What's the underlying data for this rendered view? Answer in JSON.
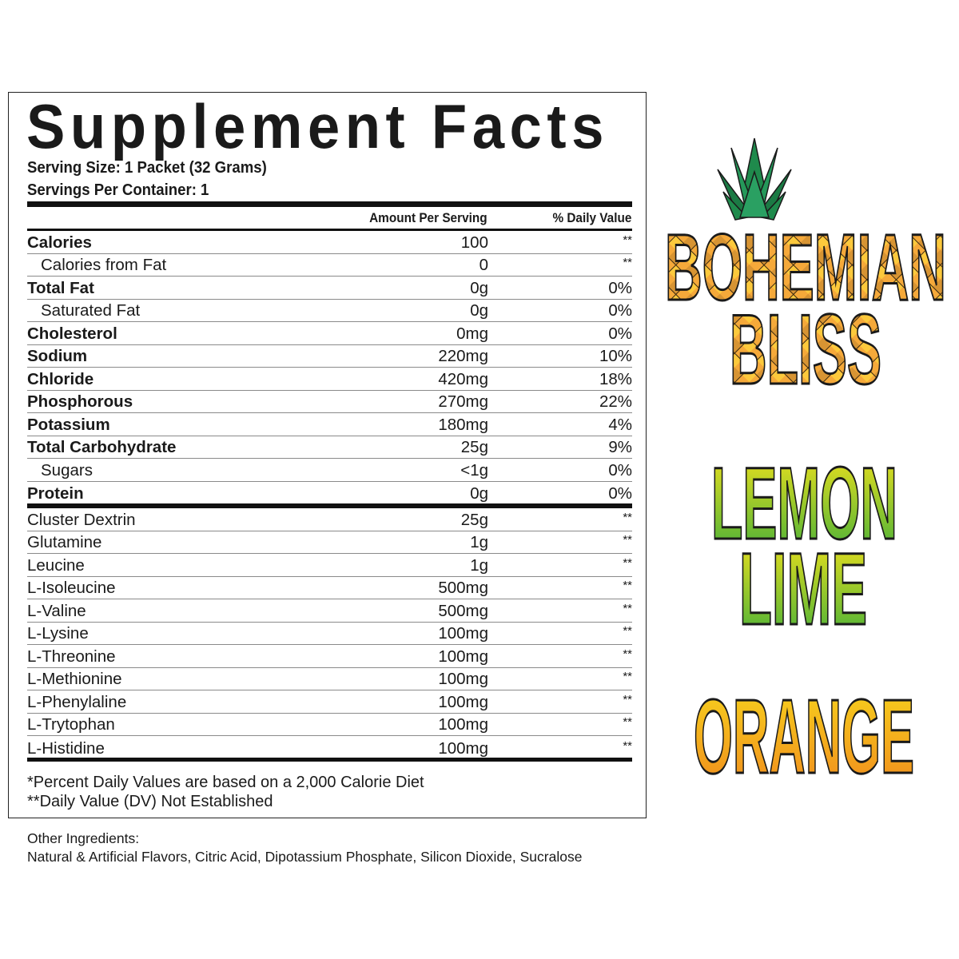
{
  "panel": {
    "title": "Supplement Facts",
    "serving_size": "Serving Size: 1 Packet (32 Grams)",
    "servings_per_container": "Servings Per Container: 1",
    "header_amount": "Amount Per Serving",
    "header_dv": "% Daily Value",
    "nutrients": [
      {
        "name": "Calories",
        "amount": "100",
        "dv": "**",
        "bold": true,
        "indent": false
      },
      {
        "name": "Calories from Fat",
        "amount": "0",
        "dv": "**",
        "bold": false,
        "indent": true
      },
      {
        "name": "Total Fat",
        "amount": "0g",
        "dv": "0%",
        "bold": true,
        "indent": false
      },
      {
        "name": "Saturated Fat",
        "amount": "0g",
        "dv": "0%",
        "bold": false,
        "indent": true
      },
      {
        "name": "Cholesterol",
        "amount": "0mg",
        "dv": "0%",
        "bold": true,
        "indent": false
      },
      {
        "name": "Sodium",
        "amount": "220mg",
        "dv": "10%",
        "bold": true,
        "indent": false
      },
      {
        "name": "Chloride",
        "amount": "420mg",
        "dv": "18%",
        "bold": true,
        "indent": false
      },
      {
        "name": "Phosphorous",
        "amount": "270mg",
        "dv": "22%",
        "bold": true,
        "indent": false
      },
      {
        "name": "Potassium",
        "amount": "180mg",
        "dv": "4%",
        "bold": true,
        "indent": false
      },
      {
        "name": "Total Carbohydrate",
        "amount": "25g",
        "dv": "9%",
        "bold": true,
        "indent": false
      },
      {
        "name": "Sugars",
        "amount": "<1g",
        "dv": "0%",
        "bold": false,
        "indent": true
      },
      {
        "name": "Protein",
        "amount": "0g",
        "dv": "0%",
        "bold": true,
        "indent": false
      }
    ],
    "ingredients": [
      {
        "name": "Cluster Dextrin",
        "amount": "25g",
        "dv": "**"
      },
      {
        "name": "Glutamine",
        "amount": "1g",
        "dv": "**"
      },
      {
        "name": "Leucine",
        "amount": "1g",
        "dv": "**"
      },
      {
        "name": "L-Isoleucine",
        "amount": "500mg",
        "dv": "**"
      },
      {
        "name": "L-Valine",
        "amount": "500mg",
        "dv": "**"
      },
      {
        "name": "L-Lysine",
        "amount": "100mg",
        "dv": "**"
      },
      {
        "name": "L-Threonine",
        "amount": "100mg",
        "dv": "**"
      },
      {
        "name": "L-Methionine",
        "amount": "100mg",
        "dv": "**"
      },
      {
        "name": "L-Phenylaline",
        "amount": "100mg",
        "dv": "**"
      },
      {
        "name": "L-Trytophan",
        "amount": "100mg",
        "dv": "**"
      },
      {
        "name": "L-Histidine",
        "amount": "100mg",
        "dv": "**"
      }
    ],
    "footnote_1": "*Percent Daily Values are based on a 2,000 Calorie Diet",
    "footnote_2": "**Daily Value (DV) Not Established"
  },
  "other_ingredients": {
    "label": "Other Ingredients:",
    "text": "Natural & Artificial Flavors, Citric Acid, Dipotassium Phosphate, Silicon Dioxide, Sucralose"
  },
  "flavors": {
    "bohemian_line1": "BOHEMIAN",
    "bohemian_line2": "BLISS",
    "lemon_line1": "LEMON",
    "lemon_line2": "LIME",
    "orange": "ORANGE",
    "colors": {
      "pineapple_leaf": "#1f8a4c",
      "pineapple_gold": "#f5a93a",
      "lemon_top": "#f3e21d",
      "lime_bottom": "#3fae3a",
      "orange_top": "#f7d51d",
      "orange_bottom": "#f08a1d"
    },
    "icon": "pineapple-crown-icon"
  }
}
